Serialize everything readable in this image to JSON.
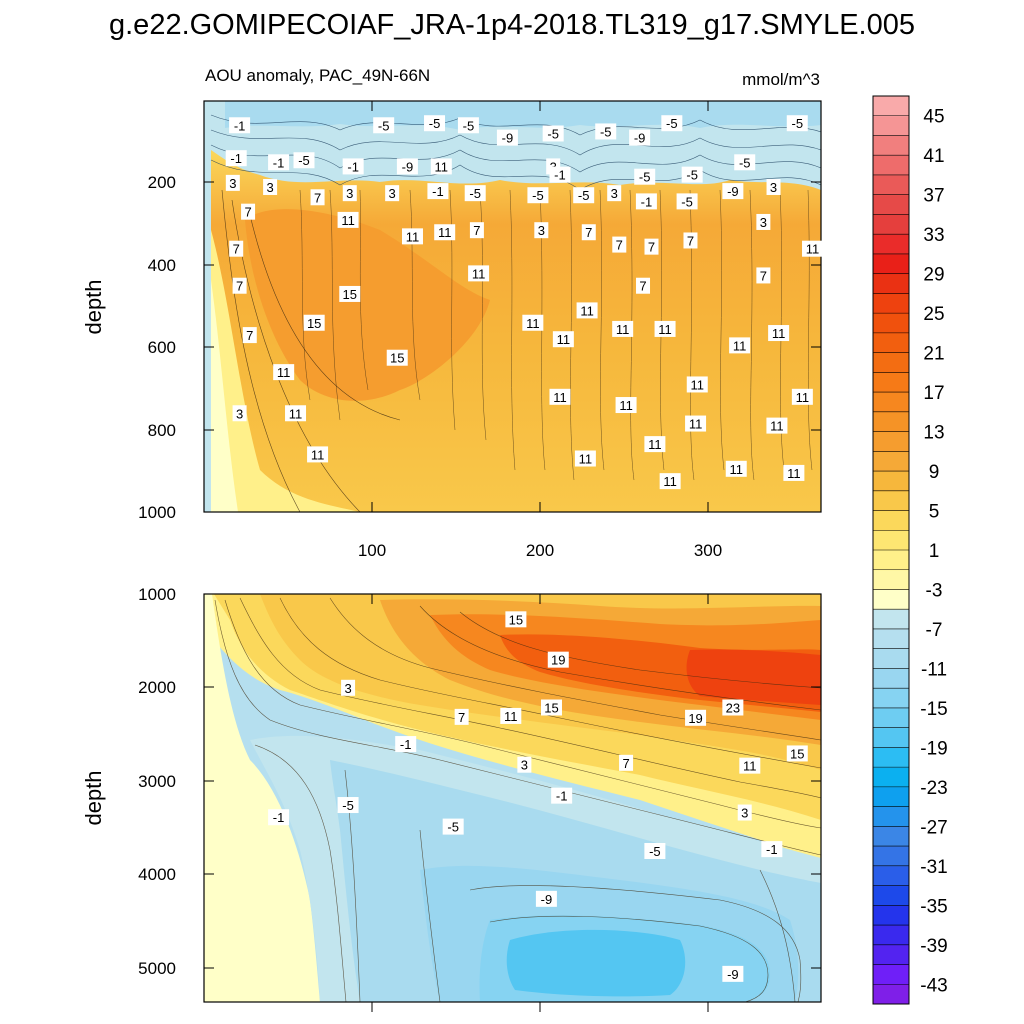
{
  "chart_data": [
    {
      "type": "heatmap",
      "title": "g.e22.GOMIPECOIAF_JRA-1p4-2018.TL319_g17.SMYLE.005",
      "subtitle_left": "AOU anomaly, PAC_49N-66N",
      "units": "mmol/m^3",
      "xlabel": "",
      "ylabel": "depth",
      "xlim": [
        1,
        365
      ],
      "ylim": [
        1000,
        1
      ],
      "xticks": [
        100,
        200,
        300
      ],
      "yticks": [
        200,
        400,
        600,
        800,
        1000
      ],
      "contour_labels": [
        {
          "x": 22,
          "y": 60,
          "v": "-1"
        },
        {
          "x": 20,
          "y": 140,
          "v": "-1"
        },
        {
          "x": 18,
          "y": 200,
          "v": "3"
        },
        {
          "x": 45,
          "y": 150,
          "v": "-1"
        },
        {
          "x": 60,
          "y": 145,
          "v": "-5"
        },
        {
          "x": 40,
          "y": 210,
          "v": "3"
        },
        {
          "x": 27,
          "y": 270,
          "v": "7"
        },
        {
          "x": 20,
          "y": 360,
          "v": "7"
        },
        {
          "x": 22,
          "y": 450,
          "v": "7"
        },
        {
          "x": 28,
          "y": 570,
          "v": "7"
        },
        {
          "x": 22,
          "y": 760,
          "v": "3"
        },
        {
          "x": 48,
          "y": 660,
          "v": "11"
        },
        {
          "x": 55,
          "y": 760,
          "v": "11"
        },
        {
          "x": 68,
          "y": 860,
          "v": "11"
        },
        {
          "x": 66,
          "y": 540,
          "v": "15"
        },
        {
          "x": 87,
          "y": 470,
          "v": "15"
        },
        {
          "x": 115,
          "y": 625,
          "v": "15"
        },
        {
          "x": 68,
          "y": 235,
          "v": "7"
        },
        {
          "x": 86,
          "y": 290,
          "v": "11"
        },
        {
          "x": 87,
          "y": 225,
          "v": "3"
        },
        {
          "x": 89,
          "y": 160,
          "v": "-1"
        },
        {
          "x": 107,
          "y": 60,
          "v": "-5"
        },
        {
          "x": 112,
          "y": 225,
          "v": "3"
        },
        {
          "x": 121,
          "y": 160,
          "v": "-9"
        },
        {
          "x": 124,
          "y": 330,
          "v": "11"
        },
        {
          "x": 137,
          "y": 55,
          "v": "-5"
        },
        {
          "x": 141,
          "y": 160,
          "v": "11"
        },
        {
          "x": 139,
          "y": 220,
          "v": "-1"
        },
        {
          "x": 143,
          "y": 320,
          "v": "11"
        },
        {
          "x": 157,
          "y": 60,
          "v": "-5"
        },
        {
          "x": 161,
          "y": 225,
          "v": "-5"
        },
        {
          "x": 162,
          "y": 315,
          "v": "7"
        },
        {
          "x": 163,
          "y": 420,
          "v": "11"
        },
        {
          "x": 180,
          "y": 90,
          "v": "-9"
        },
        {
          "x": 198,
          "y": 230,
          "v": "-5"
        },
        {
          "x": 200,
          "y": 315,
          "v": "3"
        },
        {
          "x": 207,
          "y": 80,
          "v": "-5"
        },
        {
          "x": 207,
          "y": 160,
          "v": "3"
        },
        {
          "x": 211,
          "y": 180,
          "v": "-1"
        },
        {
          "x": 195,
          "y": 540,
          "v": "11"
        },
        {
          "x": 213,
          "y": 580,
          "v": "11"
        },
        {
          "x": 211,
          "y": 720,
          "v": "11"
        },
        {
          "x": 225,
          "y": 230,
          "v": "-5"
        },
        {
          "x": 228,
          "y": 320,
          "v": "7"
        },
        {
          "x": 227,
          "y": 510,
          "v": "11"
        },
        {
          "x": 226,
          "y": 870,
          "v": "11"
        },
        {
          "x": 243,
          "y": 225,
          "v": "3"
        },
        {
          "x": 238,
          "y": 75,
          "v": "-5"
        },
        {
          "x": 246,
          "y": 350,
          "v": "7"
        },
        {
          "x": 248,
          "y": 555,
          "v": "11"
        },
        {
          "x": 250,
          "y": 740,
          "v": "11"
        },
        {
          "x": 258,
          "y": 90,
          "v": "-9"
        },
        {
          "x": 261,
          "y": 185,
          "v": "-5"
        },
        {
          "x": 262,
          "y": 245,
          "v": "-1"
        },
        {
          "x": 260,
          "y": 450,
          "v": "7"
        },
        {
          "x": 265,
          "y": 355,
          "v": "7"
        },
        {
          "x": 273,
          "y": 555,
          "v": "11"
        },
        {
          "x": 267,
          "y": 835,
          "v": "11"
        },
        {
          "x": 276,
          "y": 925,
          "v": "11"
        },
        {
          "x": 277,
          "y": 55,
          "v": "-5"
        },
        {
          "x": 286,
          "y": 245,
          "v": "-5"
        },
        {
          "x": 289,
          "y": 180,
          "v": "-5"
        },
        {
          "x": 288,
          "y": 340,
          "v": "7"
        },
        {
          "x": 292,
          "y": 690,
          "v": "11"
        },
        {
          "x": 291,
          "y": 785,
          "v": "11"
        },
        {
          "x": 313,
          "y": 220,
          "v": "-9"
        },
        {
          "x": 320,
          "y": 150,
          "v": "-5"
        },
        {
          "x": 317,
          "y": 595,
          "v": "11"
        },
        {
          "x": 315,
          "y": 895,
          "v": "11"
        },
        {
          "x": 331,
          "y": 295,
          "v": "3"
        },
        {
          "x": 337,
          "y": 210,
          "v": "3"
        },
        {
          "x": 331,
          "y": 425,
          "v": "7"
        },
        {
          "x": 340,
          "y": 565,
          "v": "11"
        },
        {
          "x": 339,
          "y": 790,
          "v": "11"
        },
        {
          "x": 351,
          "y": 55,
          "v": "-5"
        },
        {
          "x": 360,
          "y": 360,
          "v": "11"
        },
        {
          "x": 354,
          "y": 720,
          "v": "11"
        },
        {
          "x": 349,
          "y": 905,
          "v": "11"
        }
      ]
    },
    {
      "type": "heatmap",
      "xlabel": "",
      "ylabel": "depth",
      "xlim": [
        1,
        365
      ],
      "ylim": [
        5350,
        1000
      ],
      "yticks": [
        1000,
        2000,
        3000,
        4000,
        5000
      ],
      "contour_labels": [
        {
          "x": 185,
          "y": 1270,
          "v": "15"
        },
        {
          "x": 210,
          "y": 1700,
          "v": "19"
        },
        {
          "x": 313,
          "y": 2210,
          "v": "23"
        },
        {
          "x": 291,
          "y": 2320,
          "v": "19"
        },
        {
          "x": 206,
          "y": 2210,
          "v": "15"
        },
        {
          "x": 182,
          "y": 2300,
          "v": "11"
        },
        {
          "x": 153,
          "y": 2310,
          "v": "7"
        },
        {
          "x": 86,
          "y": 2000,
          "v": "3"
        },
        {
          "x": 120,
          "y": 2600,
          "v": "-1"
        },
        {
          "x": 190,
          "y": 2820,
          "v": "3"
        },
        {
          "x": 250,
          "y": 2800,
          "v": "7"
        },
        {
          "x": 323,
          "y": 2830,
          "v": "11"
        },
        {
          "x": 351,
          "y": 2700,
          "v": "15"
        },
        {
          "x": 212,
          "y": 3150,
          "v": "-1"
        },
        {
          "x": 320,
          "y": 3330,
          "v": "3"
        },
        {
          "x": 336,
          "y": 3720,
          "v": "-1"
        },
        {
          "x": 267,
          "y": 3740,
          "v": "-5"
        },
        {
          "x": 148,
          "y": 3480,
          "v": "-5"
        },
        {
          "x": 86,
          "y": 3250,
          "v": "-5"
        },
        {
          "x": 45,
          "y": 3380,
          "v": "-1"
        },
        {
          "x": 203,
          "y": 4250,
          "v": "-9"
        },
        {
          "x": 313,
          "y": 5050,
          "v": "-9"
        }
      ]
    },
    {
      "type": "colorbar",
      "labels": [
        "45",
        "41",
        "37",
        "33",
        "29",
        "25",
        "21",
        "17",
        "13",
        "9",
        "5",
        "1",
        "-3",
        "-7",
        "-11",
        "-15",
        "-19",
        "-23",
        "-27",
        "-31",
        "-35",
        "-39",
        "-43"
      ],
      "levels": [
        -45,
        -43,
        -41,
        -39,
        -37,
        -35,
        -33,
        -31,
        -29,
        -27,
        -25,
        -23,
        -21,
        -19,
        -17,
        -15,
        -13,
        -11,
        -9,
        -7,
        -5,
        -3,
        -1,
        1,
        3,
        5,
        7,
        9,
        11,
        13,
        15,
        17,
        19,
        21,
        23,
        25,
        27,
        29,
        31,
        33,
        35,
        37,
        39,
        41,
        43,
        45,
        47
      ],
      "colors": [
        "#7f1fe8",
        "#6f1ff8",
        "#5323f0",
        "#3a29ee",
        "#2434ec",
        "#1d49ea",
        "#2a5ee9",
        "#3474e6",
        "#3b86e6",
        "#2493ec",
        "#0ea0ef",
        "#0bb0f0",
        "#2cbdf3",
        "#54c6f2",
        "#6ecdf2",
        "#86d3f2",
        "#99d6f0",
        "#a9dbef",
        "#b5dfef",
        "#c2e5ee",
        "#ffffc8",
        "#fff7a6",
        "#fff08a",
        "#fde672",
        "#fbd85b",
        "#f9c84a",
        "#f6b73c",
        "#f5a937",
        "#f59d2f",
        "#f59326",
        "#f6871f",
        "#f67a17",
        "#f36d12",
        "#f25f0f",
        "#f0510d",
        "#ee420f",
        "#ea3113",
        "#e92018",
        "#ea2c2a",
        "#e53f3d",
        "#e64a48",
        "#ea5a58",
        "#ee6c6b",
        "#f17f7e",
        "#f59595",
        "#f9aaaa"
      ]
    }
  ],
  "header": {
    "title": "g.e22.GOMIPECOIAF_JRA-1p4-2018.TL319_g17.SMYLE.005",
    "subtitle_left": "AOU anomaly, PAC_49N-66N",
    "units": "mmol/m^3"
  },
  "colors": {
    "lightblue": "#c2e5ee",
    "blue1": "#a9dbef",
    "blue2": "#86d3f2",
    "cream": "#ffffc8",
    "yellow": "#fbd85b",
    "gold": "#f9c84a",
    "orange": "#f5a937",
    "darkorange": "#f67a17",
    "red": "#ee420f"
  }
}
